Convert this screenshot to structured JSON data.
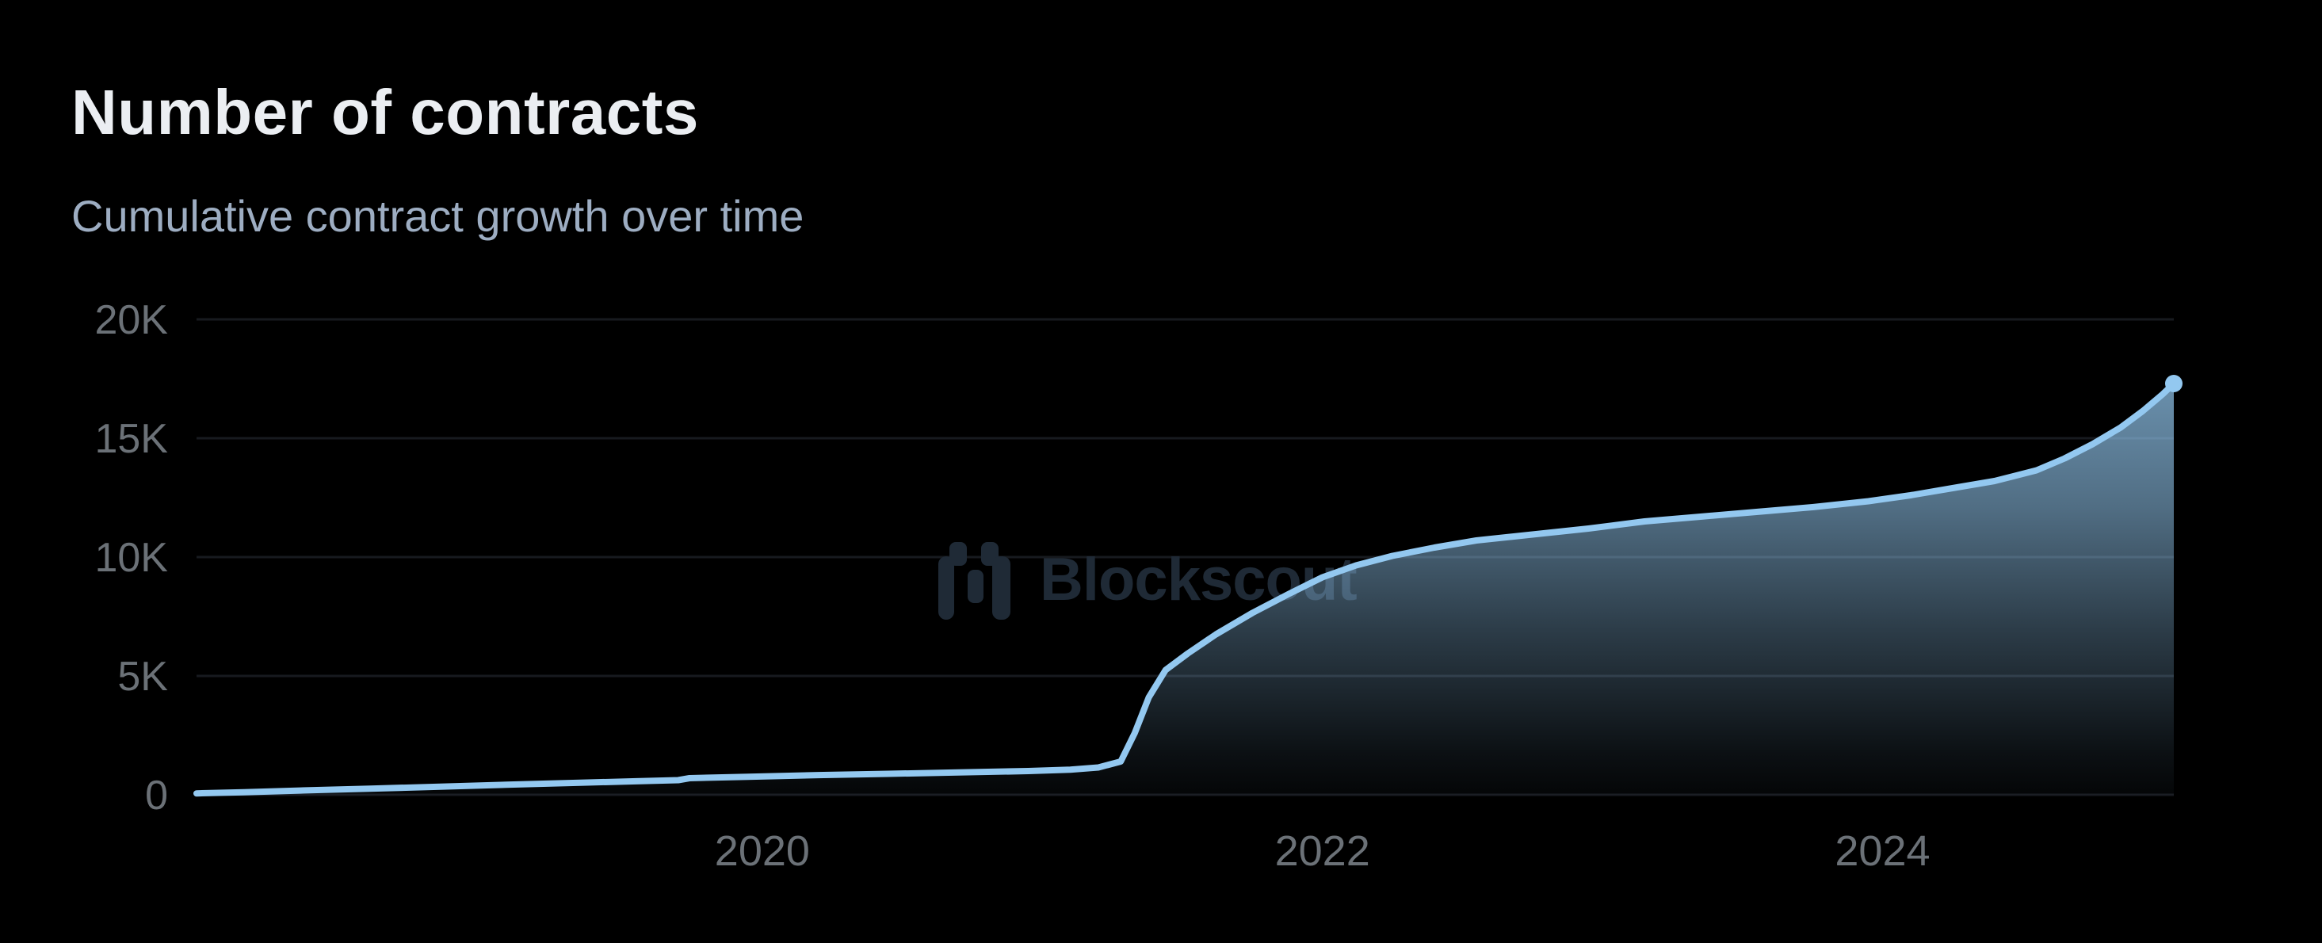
{
  "header": {
    "title": "Number of contracts",
    "subtitle": "Cumulative contract growth over time"
  },
  "watermark": {
    "text": "Blockscout",
    "icon": "blockscout-logo-icon"
  },
  "style": {
    "background": "#000000",
    "title_color": "#ebeef2",
    "subtitle_color": "#9dadc2",
    "axis_label_color": "#6b7177",
    "gridline_color": "#171a1f",
    "line_color": "#93c8f0",
    "watermark_color": "#1f2a36"
  },
  "chart_data": {
    "type": "area",
    "title": "Number of contracts",
    "subtitle": "Cumulative contract growth over time",
    "xlabel": "",
    "ylabel": "",
    "grid": "horizontal",
    "legend": "none",
    "x_domain": [
      2017.98,
      2025.04
    ],
    "y_domain": [
      0,
      20000
    ],
    "x_ticks": [
      {
        "value": 2020,
        "label": "2020"
      },
      {
        "value": 2022,
        "label": "2022"
      },
      {
        "value": 2024,
        "label": "2024"
      }
    ],
    "y_ticks": [
      {
        "value": 0,
        "label": "0"
      },
      {
        "value": 5000,
        "label": "5K"
      },
      {
        "value": 10000,
        "label": "10K"
      },
      {
        "value": 15000,
        "label": "15K"
      },
      {
        "value": 20000,
        "label": "20K"
      }
    ],
    "series": [
      {
        "name": "Number of contracts",
        "color": "#93c8f0",
        "points": [
          [
            2017.98,
            60
          ],
          [
            2018.15,
            110
          ],
          [
            2018.35,
            180
          ],
          [
            2018.6,
            260
          ],
          [
            2018.85,
            340
          ],
          [
            2019.1,
            430
          ],
          [
            2019.35,
            510
          ],
          [
            2019.55,
            570
          ],
          [
            2019.7,
            615
          ],
          [
            2019.74,
            700
          ],
          [
            2019.95,
            760
          ],
          [
            2020.2,
            830
          ],
          [
            2020.45,
            885
          ],
          [
            2020.7,
            940
          ],
          [
            2020.95,
            1000
          ],
          [
            2021.1,
            1060
          ],
          [
            2021.2,
            1150
          ],
          [
            2021.28,
            1400
          ],
          [
            2021.33,
            2600
          ],
          [
            2021.38,
            4100
          ],
          [
            2021.44,
            5250
          ],
          [
            2021.52,
            5950
          ],
          [
            2021.62,
            6750
          ],
          [
            2021.75,
            7650
          ],
          [
            2021.88,
            8450
          ],
          [
            2022.0,
            9150
          ],
          [
            2022.12,
            9650
          ],
          [
            2022.25,
            10050
          ],
          [
            2022.4,
            10400
          ],
          [
            2022.55,
            10700
          ],
          [
            2022.75,
            10950
          ],
          [
            2022.95,
            11200
          ],
          [
            2023.15,
            11500
          ],
          [
            2023.35,
            11700
          ],
          [
            2023.55,
            11900
          ],
          [
            2023.75,
            12100
          ],
          [
            2023.95,
            12350
          ],
          [
            2024.1,
            12600
          ],
          [
            2024.25,
            12900
          ],
          [
            2024.4,
            13200
          ],
          [
            2024.55,
            13650
          ],
          [
            2024.65,
            14150
          ],
          [
            2024.75,
            14750
          ],
          [
            2024.85,
            15450
          ],
          [
            2024.93,
            16150
          ],
          [
            2025.0,
            16850
          ],
          [
            2025.04,
            17300
          ]
        ]
      }
    ]
  }
}
